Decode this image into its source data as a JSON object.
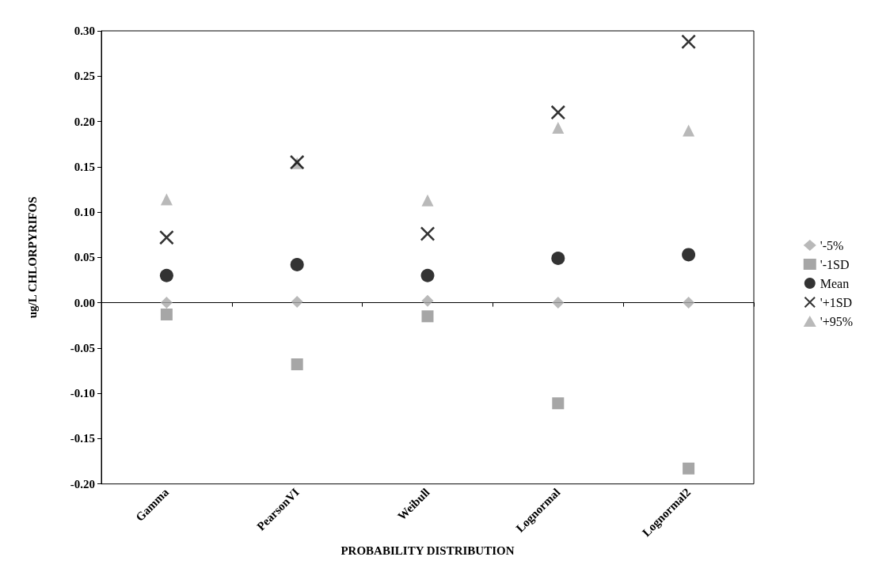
{
  "chart_data": {
    "type": "scatter",
    "xlabel": "PROBABILITY DISTRIBUTION",
    "ylabel": "ug/L CHLORPYRIFOS",
    "categories": [
      "Gamma",
      "PearsonVI",
      "Weibull",
      "Lognormal",
      "Lognormal2"
    ],
    "ylim": [
      -0.2,
      0.3
    ],
    "yticks": [
      {
        "value": -0.2,
        "label": "-0.20"
      },
      {
        "value": -0.15,
        "label": "-0.15"
      },
      {
        "value": -0.1,
        "label": "-0.10"
      },
      {
        "value": -0.05,
        "label": "-0.05"
      },
      {
        "value": 0,
        "label": "0.00"
      },
      {
        "value": 0.05,
        "label": "0.05"
      },
      {
        "value": 0.1,
        "label": "0.10"
      },
      {
        "value": 0.15,
        "label": "0.15"
      },
      {
        "value": 0.2,
        "label": "0.20"
      },
      {
        "value": 0.25,
        "label": "0.25"
      },
      {
        "value": 0.3,
        "label": "0.30"
      }
    ],
    "legend": "right",
    "series": [
      {
        "name": "'-5%",
        "color": "#a8a8a8",
        "marker": "diamond",
        "values": [
          0.0,
          0.001,
          0.002,
          0.0,
          0.0
        ]
      },
      {
        "name": "'-1SD",
        "color": "#909090",
        "marker": "square",
        "values": [
          -0.013,
          -0.068,
          -0.015,
          -0.111,
          -0.183
        ]
      },
      {
        "name": "Mean",
        "color": "#000000",
        "marker": "circle",
        "values": [
          0.03,
          0.042,
          0.03,
          0.049,
          0.053
        ]
      },
      {
        "name": "'+1SD",
        "color": "#000000",
        "marker": "cross",
        "values": [
          0.072,
          0.155,
          0.076,
          0.21,
          0.288
        ]
      },
      {
        "name": "'+95%",
        "color": "#a8a8a8",
        "marker": "triangle",
        "values": [
          0.114,
          0.154,
          0.113,
          0.193,
          0.19
        ]
      }
    ]
  }
}
